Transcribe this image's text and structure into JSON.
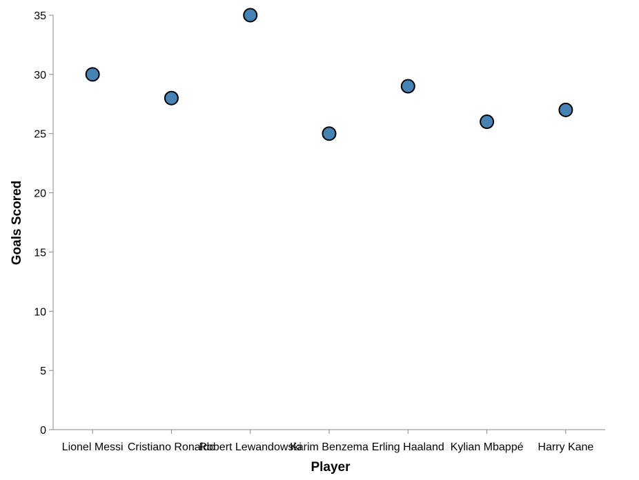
{
  "chart_data": {
    "type": "scatter",
    "title": "",
    "xlabel": "Player",
    "ylabel": "Goals Scored",
    "categories": [
      "Lionel Messi",
      "Cristiano Ronaldo",
      "Robert Lewandowski",
      "Karim Benzema",
      "Erling Haaland",
      "Kylian Mbappé",
      "Harry Kane"
    ],
    "values": [
      30,
      28,
      35,
      25,
      29,
      26,
      27
    ],
    "ylim": [
      0,
      35
    ],
    "yticks": [
      0,
      5,
      10,
      15,
      20,
      25,
      30,
      35
    ],
    "grid": false,
    "colors": {
      "point_fill": "#4682b4",
      "point_stroke": "#000000",
      "axis": "#888888"
    }
  }
}
